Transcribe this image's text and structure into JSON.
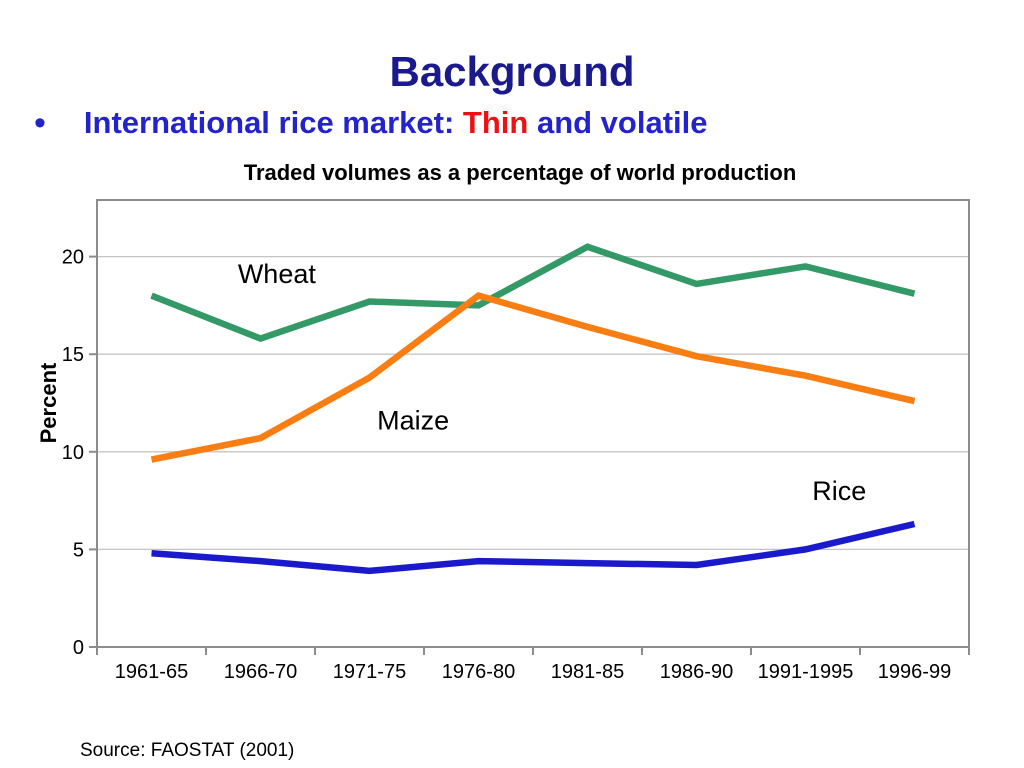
{
  "slide": {
    "title": "Background",
    "bullet": {
      "marker": "•",
      "text_blue_1": "International rice market: ",
      "text_red": "Thin",
      "text_blue_2": " and volatile"
    },
    "source": "Source: FAOSTAT (2001)"
  },
  "colors": {
    "title": "#1A1A8C",
    "bullet_blue": "#2323CC",
    "bullet_red": "#EE1111",
    "axis_frame": "#8C8C8C",
    "gridline": "#C4C4C4",
    "tick_text": "#000000",
    "wheat": "#339966",
    "maize": "#F87E14",
    "rice": "#1A1ACC"
  },
  "chart_data": {
    "type": "line",
    "title": "Traded volumes as a percentage of world production",
    "ylabel": "Percent",
    "xlabel": "",
    "categories": [
      "1961-65",
      "1966-70",
      "1971-75",
      "1976-80",
      "1981-85",
      "1986-90",
      "1991-1995",
      "1996-99"
    ],
    "series": [
      {
        "name": "Wheat",
        "color": "#339966",
        "values": [
          18.0,
          15.8,
          17.7,
          17.5,
          20.5,
          18.6,
          19.5,
          18.1
        ],
        "label_anchor": {
          "category_index": 1.15,
          "value": 19.1
        }
      },
      {
        "name": "Maize",
        "color": "#F87E14",
        "values": [
          9.6,
          10.7,
          13.8,
          18.0,
          16.4,
          14.9,
          13.9,
          12.6
        ],
        "label_anchor": {
          "category_index": 2.4,
          "value": 11.6
        }
      },
      {
        "name": "Rice",
        "color": "#1A1ACC",
        "values": [
          4.8,
          4.4,
          3.9,
          4.4,
          4.3,
          4.2,
          5.0,
          6.3
        ],
        "label_anchor": {
          "category_index": 6.31,
          "value": 8.0
        }
      }
    ],
    "yticks": [
      0,
      5,
      10,
      15,
      20
    ],
    "ylim": [
      0,
      22.9
    ],
    "grid": true,
    "legend_position": "inline-labels"
  }
}
